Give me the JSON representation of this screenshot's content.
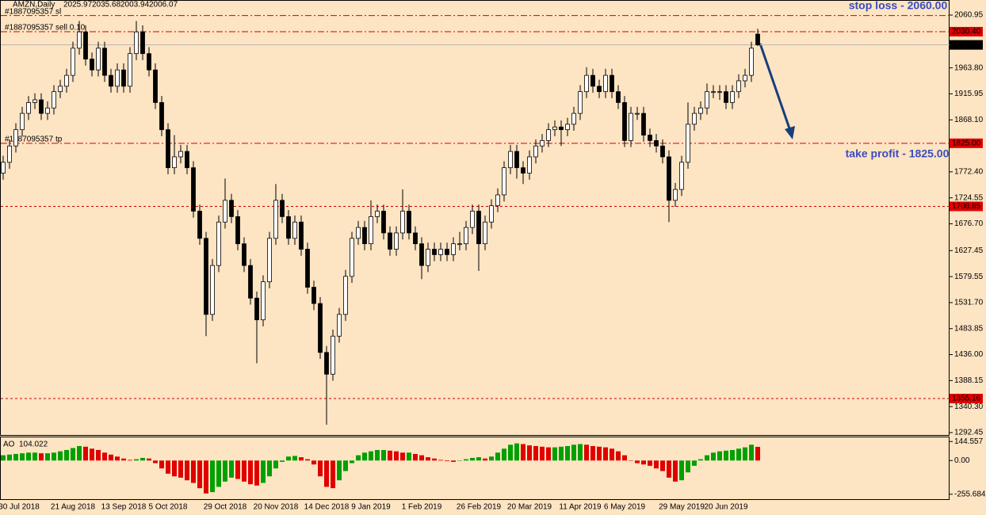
{
  "chart_data": {
    "type": "candlestick",
    "symbol": "AMZN,Daily",
    "categories": [
      null,
      null,
      "30 Jul 2018",
      null,
      null,
      null,
      null,
      null,
      null,
      null,
      null,
      "21 Aug 2018",
      null,
      null,
      null,
      null,
      null,
      null,
      null,
      "13 Sep 2018",
      null,
      null,
      null,
      null,
      null,
      null,
      "5 Oct 2018",
      null,
      null,
      null,
      null,
      null,
      null,
      null,
      null,
      "29 Oct 2018",
      null,
      null,
      null,
      null,
      null,
      null,
      null,
      "20 Nov 2018",
      null,
      null,
      null,
      null,
      null,
      null,
      null,
      "14 Dec 2018",
      null,
      null,
      null,
      null,
      null,
      null,
      "9 Jan 2019",
      null,
      null,
      null,
      null,
      null,
      null,
      null,
      "1 Feb 2019",
      null,
      null,
      null,
      null,
      null,
      null,
      null,
      null,
      "26 Feb 2019",
      null,
      null,
      null,
      null,
      null,
      null,
      null,
      "20 Mar 2019",
      null,
      null,
      null,
      null,
      null,
      null,
      null,
      "11 Apr 2019",
      null,
      null,
      null,
      null,
      null,
      null,
      "6 May 2019",
      null,
      null,
      null,
      null,
      null,
      null,
      null,
      null,
      "29 May 2019",
      null,
      null,
      null,
      null,
      null,
      null,
      "20 Jun 2019",
      null,
      null,
      null,
      null,
      null
    ],
    "candles": [
      [
        1770,
        1802,
        1758,
        1790
      ],
      [
        1790,
        1832,
        1778,
        1820
      ],
      [
        1820,
        1862,
        1808,
        1850
      ],
      [
        1850,
        1892,
        1838,
        1880
      ],
      [
        1880,
        1912,
        1868,
        1900
      ],
      [
        1900,
        1917,
        1888,
        1905
      ],
      [
        1905,
        1917,
        1868,
        1880
      ],
      [
        1880,
        1902,
        1868,
        1890
      ],
      [
        1890,
        1932,
        1878,
        1920
      ],
      [
        1920,
        1942,
        1908,
        1930
      ],
      [
        1930,
        1962,
        1918,
        1950
      ],
      [
        1950,
        2012,
        1938,
        2000
      ],
      [
        2000,
        2050,
        1988,
        2030
      ],
      [
        2030,
        2042,
        1968,
        1980
      ],
      [
        1980,
        1992,
        1948,
        1960
      ],
      [
        1960,
        2012,
        1948,
        2000
      ],
      [
        2000,
        2012,
        1938,
        1950
      ],
      [
        1950,
        1962,
        1918,
        1930
      ],
      [
        1930,
        1972,
        1918,
        1960
      ],
      [
        1960,
        1972,
        1918,
        1930
      ],
      [
        1930,
        2002,
        1918,
        1990
      ],
      [
        1990,
        2050,
        1978,
        2030
      ],
      [
        2030,
        2042,
        1978,
        1990
      ],
      [
        1990,
        2002,
        1948,
        1960
      ],
      [
        1960,
        1972,
        1888,
        1900
      ],
      [
        1900,
        1912,
        1838,
        1850
      ],
      [
        1850,
        1862,
        1768,
        1780
      ],
      [
        1780,
        1840,
        1768,
        1800
      ],
      [
        1800,
        1822,
        1788,
        1810
      ],
      [
        1810,
        1822,
        1768,
        1780
      ],
      [
        1780,
        1792,
        1688,
        1700
      ],
      [
        1700,
        1712,
        1638,
        1650
      ],
      [
        1650,
        1662,
        1470,
        1510
      ],
      [
        1510,
        1612,
        1498,
        1600
      ],
      [
        1600,
        1692,
        1588,
        1680
      ],
      [
        1680,
        1760,
        1668,
        1720
      ],
      [
        1720,
        1732,
        1678,
        1690
      ],
      [
        1690,
        1702,
        1628,
        1640
      ],
      [
        1640,
        1652,
        1588,
        1600
      ],
      [
        1600,
        1612,
        1528,
        1540
      ],
      [
        1540,
        1552,
        1420,
        1500
      ],
      [
        1500,
        1582,
        1488,
        1570
      ],
      [
        1570,
        1662,
        1558,
        1650
      ],
      [
        1650,
        1750,
        1638,
        1720
      ],
      [
        1720,
        1732,
        1678,
        1690
      ],
      [
        1690,
        1702,
        1638,
        1650
      ],
      [
        1650,
        1692,
        1638,
        1680
      ],
      [
        1680,
        1692,
        1618,
        1630
      ],
      [
        1630,
        1642,
        1548,
        1560
      ],
      [
        1560,
        1572,
        1518,
        1530
      ],
      [
        1530,
        1542,
        1428,
        1440
      ],
      [
        1440,
        1452,
        1307,
        1400
      ],
      [
        1400,
        1482,
        1388,
        1470
      ],
      [
        1470,
        1522,
        1458,
        1510
      ],
      [
        1510,
        1592,
        1498,
        1580
      ],
      [
        1580,
        1662,
        1568,
        1650
      ],
      [
        1650,
        1682,
        1638,
        1670
      ],
      [
        1670,
        1682,
        1628,
        1640
      ],
      [
        1640,
        1720,
        1628,
        1690
      ],
      [
        1690,
        1712,
        1678,
        1700
      ],
      [
        1700,
        1712,
        1648,
        1660
      ],
      [
        1660,
        1672,
        1618,
        1630
      ],
      [
        1630,
        1672,
        1618,
        1660
      ],
      [
        1660,
        1740,
        1648,
        1700
      ],
      [
        1700,
        1712,
        1648,
        1660
      ],
      [
        1660,
        1672,
        1628,
        1640
      ],
      [
        1640,
        1652,
        1575,
        1600
      ],
      [
        1600,
        1642,
        1588,
        1630
      ],
      [
        1630,
        1642,
        1608,
        1620
      ],
      [
        1620,
        1642,
        1608,
        1630
      ],
      [
        1630,
        1642,
        1608,
        1620
      ],
      [
        1620,
        1652,
        1608,
        1640
      ],
      [
        1640,
        1662,
        1628,
        1640
      ],
      [
        1640,
        1682,
        1628,
        1670
      ],
      [
        1670,
        1712,
        1658,
        1700
      ],
      [
        1700,
        1712,
        1590,
        1640
      ],
      [
        1640,
        1692,
        1628,
        1680
      ],
      [
        1680,
        1722,
        1668,
        1710
      ],
      [
        1710,
        1742,
        1698,
        1730
      ],
      [
        1730,
        1792,
        1718,
        1780
      ],
      [
        1780,
        1822,
        1768,
        1810
      ],
      [
        1810,
        1822,
        1760,
        1780
      ],
      [
        1780,
        1792,
        1750,
        1770
      ],
      [
        1770,
        1812,
        1758,
        1800
      ],
      [
        1800,
        1832,
        1788,
        1820
      ],
      [
        1820,
        1842,
        1808,
        1830
      ],
      [
        1830,
        1862,
        1818,
        1850
      ],
      [
        1850,
        1867,
        1838,
        1855
      ],
      [
        1855,
        1867,
        1820,
        1850
      ],
      [
        1850,
        1872,
        1838,
        1860
      ],
      [
        1860,
        1892,
        1848,
        1880
      ],
      [
        1880,
        1932,
        1868,
        1920
      ],
      [
        1920,
        1965,
        1908,
        1950
      ],
      [
        1950,
        1962,
        1918,
        1930
      ],
      [
        1930,
        1942,
        1908,
        1920
      ],
      [
        1920,
        1962,
        1908,
        1950
      ],
      [
        1950,
        1962,
        1908,
        1920
      ],
      [
        1920,
        1932,
        1888,
        1900
      ],
      [
        1900,
        1912,
        1818,
        1830
      ],
      [
        1830,
        1892,
        1818,
        1880
      ],
      [
        1880,
        1892,
        1868,
        1880
      ],
      [
        1880,
        1892,
        1828,
        1840
      ],
      [
        1840,
        1852,
        1818,
        1830
      ],
      [
        1830,
        1842,
        1808,
        1820
      ],
      [
        1820,
        1832,
        1788,
        1800
      ],
      [
        1800,
        1812,
        1680,
        1720
      ],
      [
        1720,
        1752,
        1708,
        1740
      ],
      [
        1740,
        1802,
        1728,
        1790
      ],
      [
        1790,
        1900,
        1778,
        1860
      ],
      [
        1860,
        1892,
        1848,
        1880
      ],
      [
        1880,
        1902,
        1868,
        1890
      ],
      [
        1890,
        1935,
        1878,
        1920
      ],
      [
        1920,
        1932,
        1908,
        1920
      ],
      [
        1920,
        1932,
        1905,
        1920
      ],
      [
        1920,
        1932,
        1888,
        1900
      ],
      [
        1900,
        1932,
        1888,
        1920
      ],
      [
        1920,
        1952,
        1908,
        1940
      ],
      [
        1940,
        1962,
        1928,
        1950
      ],
      [
        1950,
        2012,
        1938,
        2000
      ],
      [
        2025.97,
        2035.68,
        2003.94,
        2006.07
      ]
    ],
    "bull_color": "#ffffff",
    "bear_color": "#000000",
    "wick_color": "#000000",
    "ylim": [
      1286.6,
      2088.7
    ],
    "yticks": [
      2060.95,
      {
        "value": 1963.8,
        "label": "1963.80"
      },
      1915.95,
      {
        "value": 1868.1,
        "label": "1868.10"
      },
      {
        "value": 1772.4,
        "label": "1772.40"
      },
      1724.55,
      {
        "value": 1676.7,
        "label": "1676.70"
      },
      1627.45,
      1579.55,
      {
        "value": 1531.7,
        "label": "1531.70"
      },
      1483.85,
      {
        "value": 1436,
        "label": "1436.00"
      },
      1388.15,
      {
        "value": 1340.3,
        "label": "1340.30"
      },
      1292.45
    ],
    "levels": [
      {
        "value": 2060,
        "style": "dashdot",
        "color": "#d00000",
        "text": "#1887095357 sl"
      },
      {
        "value": 2030.4,
        "label": "2030.40",
        "style": "dashdot",
        "color": "#d00000",
        "box": "#e00000",
        "text": "#1887095357 sell 0.10"
      },
      {
        "value": 2006.07,
        "label": "2006.07",
        "style": "solid",
        "color": "#b4b4b4",
        "box": "#000000"
      },
      {
        "value": 1825,
        "label": "1825.00",
        "style": "dashdot",
        "color": "#d00000",
        "box": "#e00000",
        "text": "#1887095357 tp"
      },
      {
        "value": 1708.85,
        "label": "1708.85",
        "style": "dotted",
        "color": "#d00000",
        "box": "#e00000"
      },
      {
        "value": 1355.16,
        "label": "1355.16",
        "style": "dotted",
        "color": "#d00000",
        "box": "#e00000"
      }
    ],
    "annotations": [
      "stop loss - 2060.00",
      "take profit - 1825.00"
    ],
    "indicator": {
      "type": "bar",
      "name": "AO",
      "up_color": "#00a000",
      "down_color": "#e00000",
      "ylim": [
        -299.4,
        182
      ],
      "yticks": [
        144.557,
        {
          "value": 0,
          "label": "0.00"
        },
        -255.684
      ],
      "values": [
        40,
        45,
        50,
        55,
        60,
        60,
        55,
        55,
        60,
        70,
        80,
        95,
        110,
        105,
        90,
        80,
        60,
        45,
        30,
        15,
        5,
        10,
        20,
        15,
        -20,
        -60,
        -100,
        -120,
        -130,
        -150,
        -170,
        -210,
        -250,
        -240,
        -200,
        -160,
        -130,
        -140,
        -160,
        -180,
        -190,
        -170,
        -120,
        -60,
        -10,
        30,
        35,
        25,
        10,
        -30,
        -120,
        -200,
        -210,
        -150,
        -80,
        -20,
        40,
        60,
        70,
        80,
        80,
        75,
        70,
        60,
        60,
        50,
        40,
        25,
        15,
        5,
        -5,
        -10,
        0,
        10,
        20,
        25,
        15,
        30,
        60,
        90,
        120,
        130,
        125,
        115,
        110,
        105,
        100,
        100,
        105,
        110,
        120,
        125,
        120,
        110,
        105,
        100,
        90,
        70,
        40,
        0,
        -20,
        -30,
        -40,
        -60,
        -80,
        -130,
        -160,
        -150,
        -90,
        -40,
        10,
        40,
        60,
        70,
        75,
        80,
        90,
        100,
        120,
        104.022
      ]
    }
  }
}
